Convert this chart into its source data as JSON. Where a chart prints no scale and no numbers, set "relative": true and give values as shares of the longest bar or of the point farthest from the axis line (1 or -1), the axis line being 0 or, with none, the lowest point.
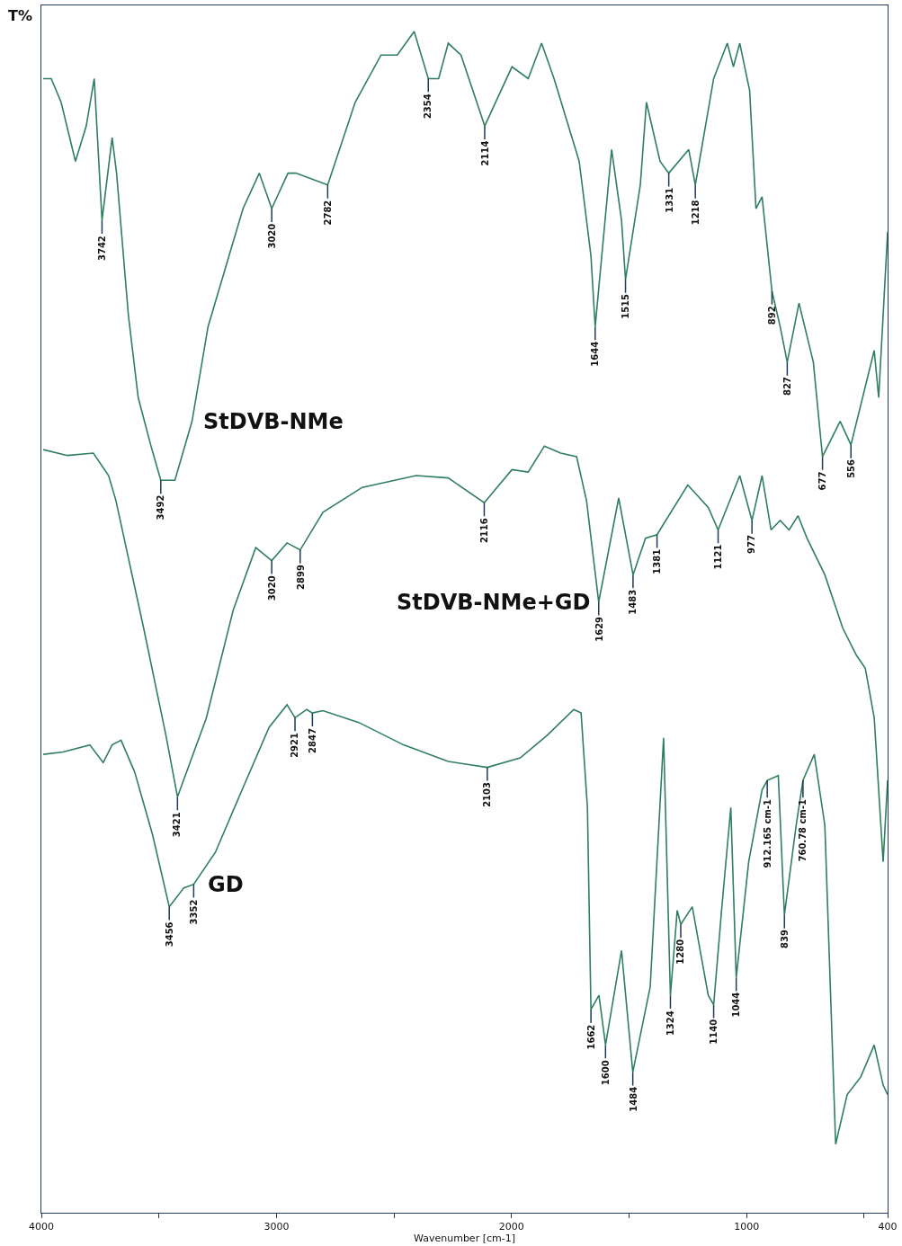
{
  "chart_data": {
    "type": "line",
    "relative": true,
    "xlabel": "Wavenumber [cm-1]",
    "ylabel": "T%",
    "xlim": [
      4000,
      400
    ],
    "xticks": [
      4000,
      {
        "value": 3500,
        "label": null
      },
      3000,
      {
        "value": 2500,
        "label": null
      },
      2000,
      {
        "value": 1500,
        "label": null
      },
      1000,
      {
        "value": 500,
        "label": null
      },
      400
    ],
    "series": [
      {
        "name": "StDVB-NMe",
        "color": "#2f7f5f",
        "x": [
          3992,
          3958,
          3916,
          3855,
          3809,
          3775,
          3742,
          3699,
          3680,
          3630,
          3588,
          3535,
          3492,
          3432,
          3359,
          3291,
          3142,
          3073,
          3020,
          2951,
          2917,
          2782,
          2665,
          2555,
          2486,
          2414,
          2354,
          2310,
          2269,
          2215,
          2114,
          1998,
          1929,
          1872,
          1819,
          1712,
          1662,
          1644,
          1574,
          1532,
          1515,
          1452,
          1426,
          1368,
          1331,
          1246,
          1218,
          1140,
          1082,
          1056,
          1029,
          987,
          960,
          934,
          892,
          857,
          827,
          777,
          716,
          677,
          602,
          556,
          457,
          438,
          400
        ],
        "values": [
          0.96,
          0.96,
          0.94,
          0.89,
          0.92,
          0.96,
          0.84,
          0.91,
          0.88,
          0.76,
          0.69,
          0.65,
          0.62,
          0.62,
          0.67,
          0.75,
          0.85,
          0.88,
          0.85,
          0.88,
          0.88,
          0.87,
          0.94,
          0.98,
          0.98,
          1.0,
          0.96,
          0.96,
          0.99,
          0.98,
          0.92,
          0.97,
          0.96,
          0.99,
          0.96,
          0.89,
          0.81,
          0.75,
          0.9,
          0.84,
          0.79,
          0.87,
          0.94,
          0.89,
          0.88,
          0.9,
          0.87,
          0.96,
          0.99,
          0.97,
          0.99,
          0.95,
          0.85,
          0.86,
          0.78,
          0.75,
          0.72,
          0.77,
          0.72,
          0.64,
          0.67,
          0.65,
          0.73,
          0.69,
          0.83
        ]
      },
      {
        "name": "StDVB-NMe+GD",
        "color": "#2f7f5f",
        "x": [
          3992,
          3889,
          3779,
          3714,
          3683,
          3565,
          3470,
          3421,
          3298,
          3184,
          3088,
          3020,
          2955,
          2899,
          2802,
          2635,
          2406,
          2269,
          2116,
          1998,
          1929,
          1860,
          1791,
          1723,
          1681,
          1629,
          1544,
          1483,
          1430,
          1381,
          1250,
          1163,
          1121,
          1029,
          977,
          934,
          896,
          857,
          819,
          781,
          743,
          667,
          591,
          533,
          495,
          457,
          419,
          400
        ],
        "values": [
          0.646,
          0.641,
          0.643,
          0.624,
          0.603,
          0.495,
          0.404,
          0.352,
          0.419,
          0.51,
          0.563,
          0.552,
          0.567,
          0.561,
          0.593,
          0.614,
          0.624,
          0.622,
          0.601,
          0.629,
          0.627,
          0.649,
          0.643,
          0.64,
          0.603,
          0.517,
          0.605,
          0.54,
          0.571,
          0.574,
          0.616,
          0.597,
          0.578,
          0.624,
          0.586,
          0.624,
          0.578,
          0.586,
          0.578,
          0.59,
          0.571,
          0.54,
          0.495,
          0.472,
          0.461,
          0.419,
          0.297,
          0.366
        ]
      },
      {
        "name": "GD",
        "color": "#2f7f5f",
        "x": [
          3992,
          3908,
          3794,
          3737,
          3699,
          3661,
          3603,
          3527,
          3456,
          3394,
          3352,
          3260,
          3146,
          3031,
          2955,
          2921,
          2871,
          2847,
          2802,
          2650,
          2459,
          2269,
          2103,
          1963,
          1849,
          1735,
          1704,
          1677,
          1662,
          1628,
          1600,
          1532,
          1484,
          1410,
          1353,
          1324,
          1295,
          1280,
          1231,
          1163,
          1140,
          1105,
          1067,
          1044,
          991,
          934,
          912,
          865,
          839,
          789,
          760,
          712,
          667,
          621,
          572,
          514,
          457,
          419,
          400
        ],
        "values": [
          0.388,
          0.39,
          0.396,
          0.381,
          0.396,
          0.4,
          0.373,
          0.32,
          0.259,
          0.275,
          0.278,
          0.305,
          0.358,
          0.411,
          0.43,
          0.419,
          0.426,
          0.423,
          0.425,
          0.415,
          0.396,
          0.382,
          0.377,
          0.385,
          0.404,
          0.426,
          0.423,
          0.343,
          0.172,
          0.184,
          0.142,
          0.222,
          0.119,
          0.191,
          0.402,
          0.184,
          0.256,
          0.244,
          0.259,
          0.184,
          0.176,
          0.259,
          0.343,
          0.199,
          0.297,
          0.358,
          0.366,
          0.37,
          0.252,
          0.328,
          0.366,
          0.388,
          0.328,
          0.058,
          0.1,
          0.115,
          0.142,
          0.108,
          0.1
        ]
      }
    ],
    "annotations": [
      {
        "text": "3742",
        "x": 3742,
        "y": 0.84
      },
      {
        "text": "3492",
        "x": 3492,
        "y": 0.62
      },
      {
        "text": "3020",
        "x": 3020,
        "y": 0.85
      },
      {
        "text": "2782",
        "x": 2782,
        "y": 0.87
      },
      {
        "text": "2354",
        "x": 2354,
        "y": 0.96
      },
      {
        "text": "2114",
        "x": 2114,
        "y": 0.92
      },
      {
        "text": "1644",
        "x": 1644,
        "y": 0.75
      },
      {
        "text": "1515",
        "x": 1515,
        "y": 0.79
      },
      {
        "text": "1331",
        "x": 1331,
        "y": 0.88
      },
      {
        "text": "1218",
        "x": 1218,
        "y": 0.87
      },
      {
        "text": "892",
        "x": 892,
        "y": 0.78
      },
      {
        "text": "827",
        "x": 827,
        "y": 0.72
      },
      {
        "text": "677",
        "x": 677,
        "y": 0.64
      },
      {
        "text": "556",
        "x": 556,
        "y": 0.65
      },
      {
        "text": "3421",
        "x": 3421,
        "y": 0.352
      },
      {
        "text": "3020",
        "x": 3020,
        "y": 0.552
      },
      {
        "text": "2899",
        "x": 2899,
        "y": 0.561
      },
      {
        "text": "2116",
        "x": 2116,
        "y": 0.601
      },
      {
        "text": "1629",
        "x": 1629,
        "y": 0.517
      },
      {
        "text": "1483",
        "x": 1483,
        "y": 0.54
      },
      {
        "text": "1381",
        "x": 1381,
        "y": 0.574
      },
      {
        "text": "1121",
        "x": 1121,
        "y": 0.578
      },
      {
        "text": "977",
        "x": 977,
        "y": 0.586
      },
      {
        "text": "3456",
        "x": 3456,
        "y": 0.259
      },
      {
        "text": "3352",
        "x": 3352,
        "y": 0.278
      },
      {
        "text": "2921",
        "x": 2921,
        "y": 0.419
      },
      {
        "text": "2847",
        "x": 2847,
        "y": 0.423
      },
      {
        "text": "2103",
        "x": 2103,
        "y": 0.377
      },
      {
        "text": "1662",
        "x": 1662,
        "y": 0.172
      },
      {
        "text": "1600",
        "x": 1600,
        "y": 0.142
      },
      {
        "text": "1484",
        "x": 1484,
        "y": 0.119
      },
      {
        "text": "1324",
        "x": 1324,
        "y": 0.184
      },
      {
        "text": "1280",
        "x": 1280,
        "y": 0.244
      },
      {
        "text": "1140",
        "x": 1140,
        "y": 0.176
      },
      {
        "text": "1044",
        "x": 1044,
        "y": 0.199
      },
      {
        "text": "839",
        "x": 839,
        "y": 0.252
      },
      {
        "text": "912.165 cm-1",
        "x": 912,
        "y": 0.366
      },
      {
        "text": "760.78 cm-1",
        "x": 760,
        "y": 0.366
      }
    ]
  }
}
